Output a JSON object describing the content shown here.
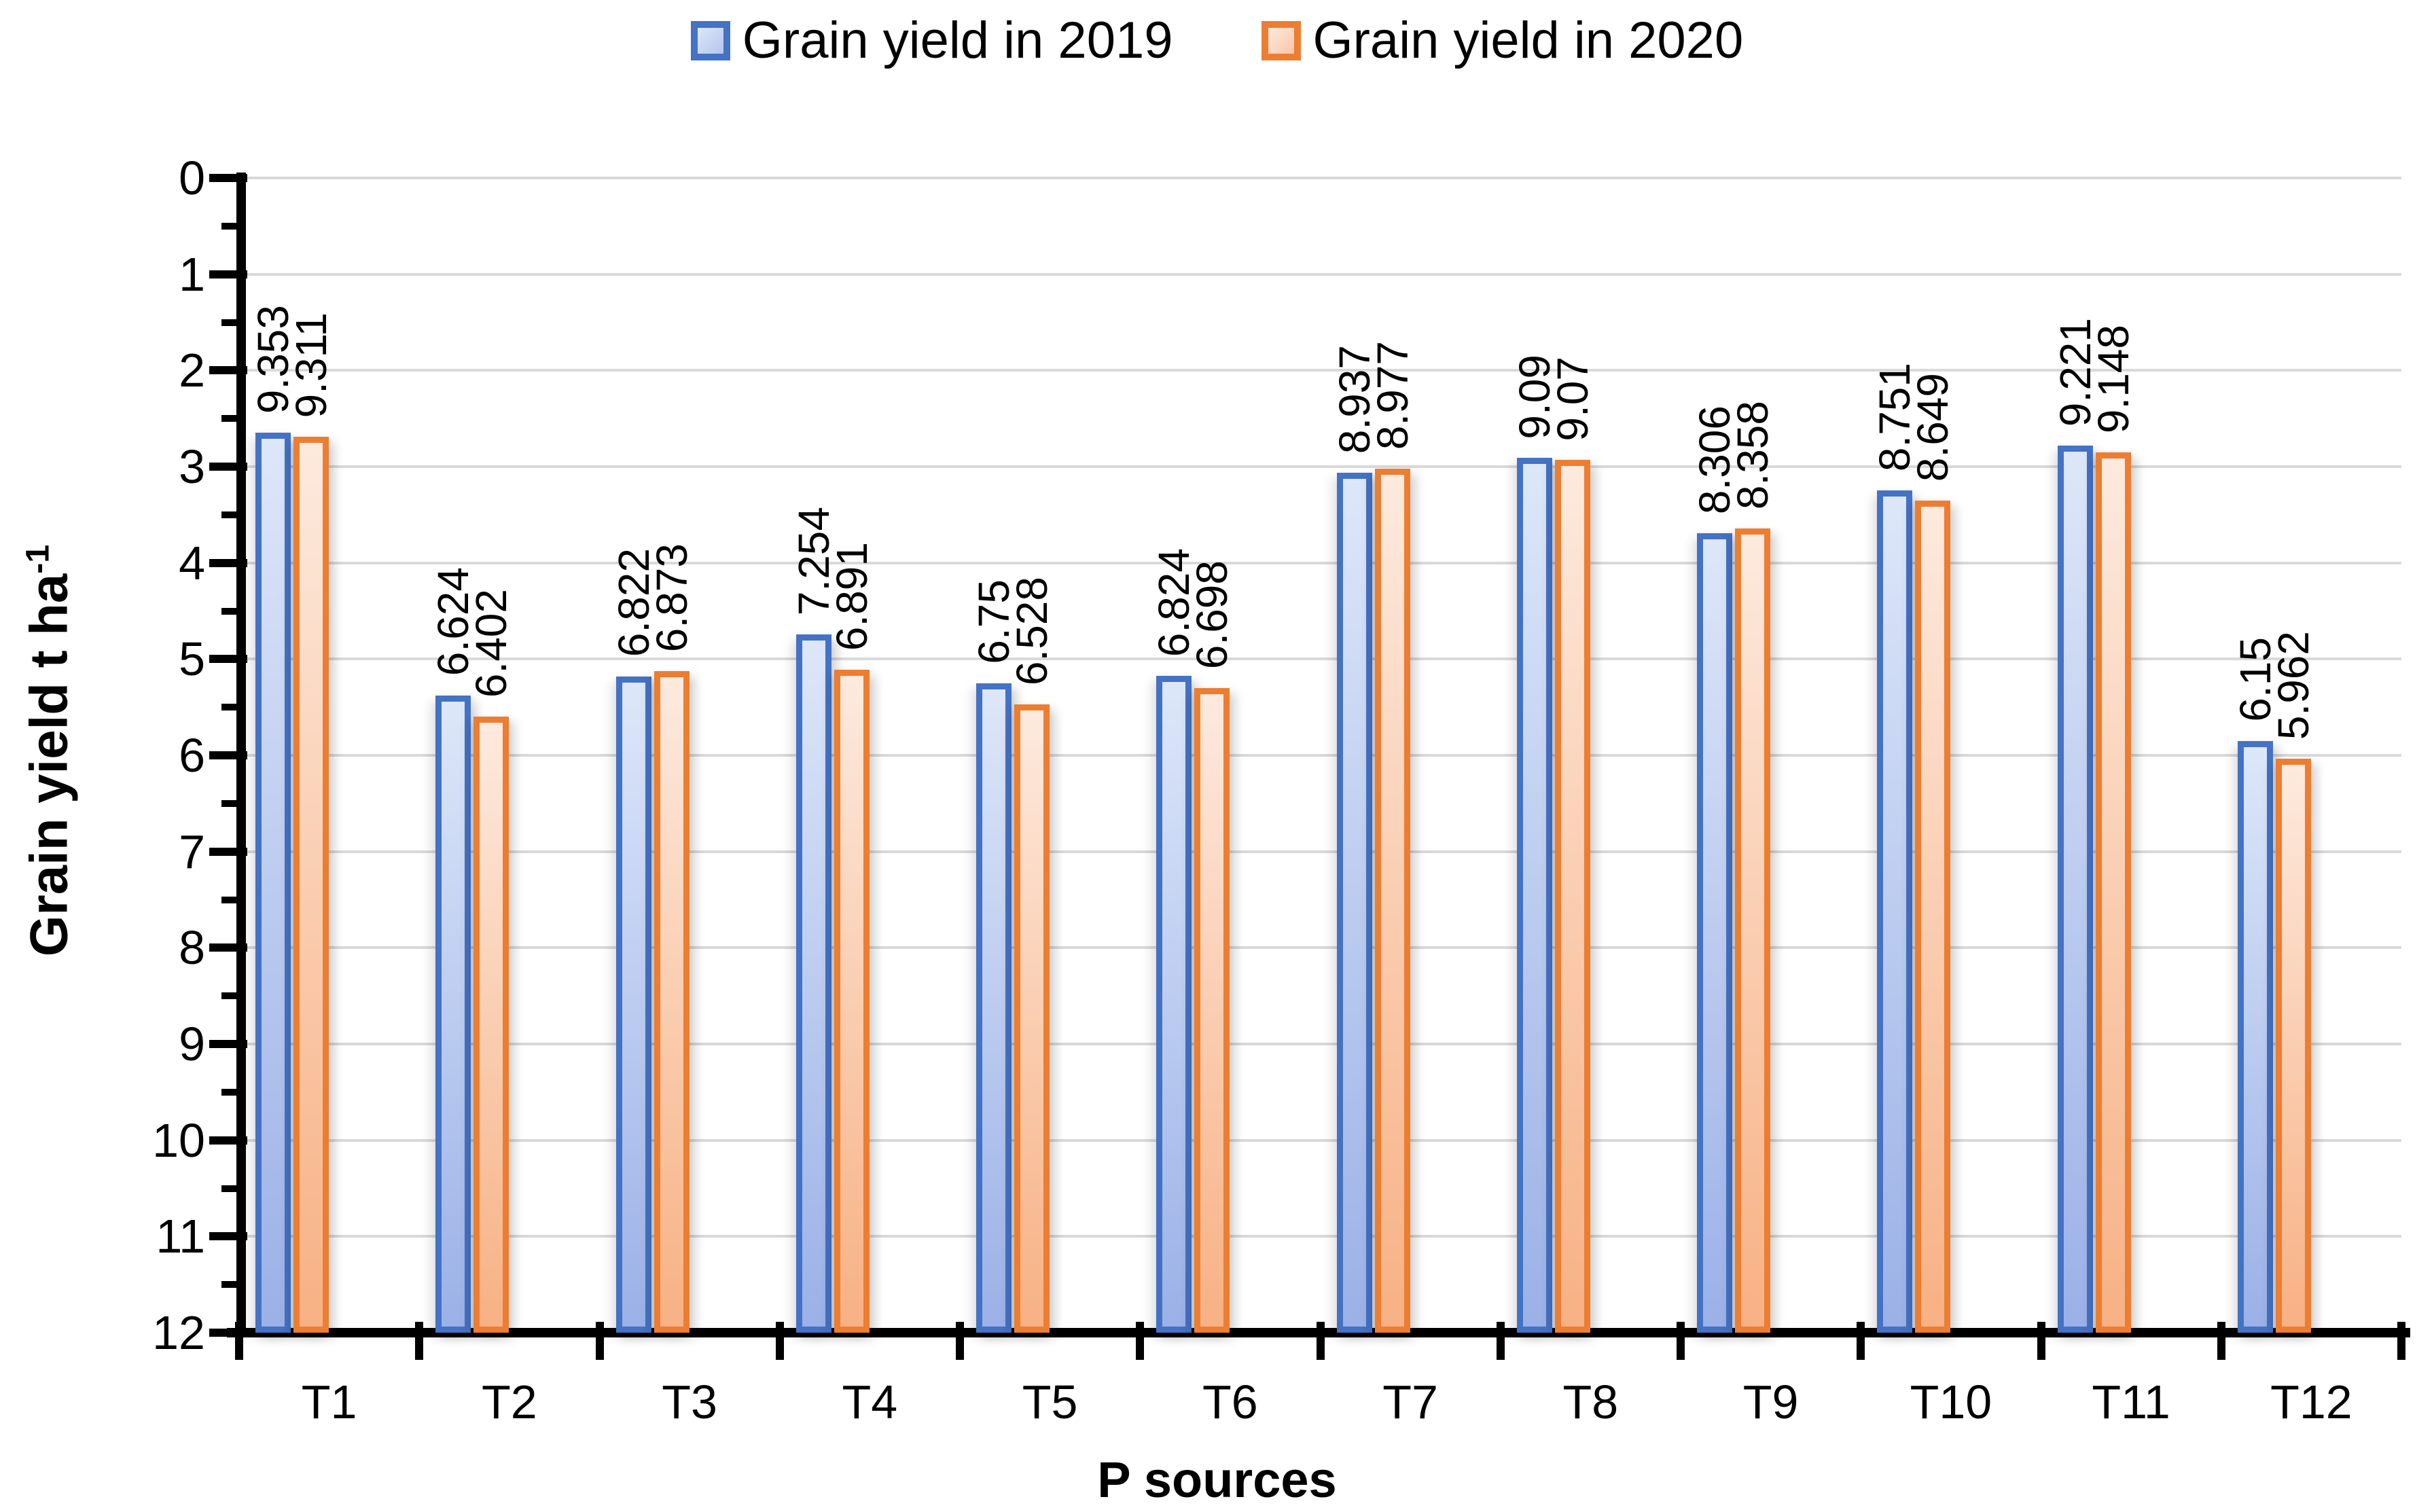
{
  "legend": {
    "items": [
      {
        "label": "Grain yield in 2019"
      },
      {
        "label": "Grain yield in 2020"
      }
    ]
  },
  "y_axis": {
    "title": "Grain yield t ha",
    "title_superscript": "-1",
    "tick_labels": [
      "0",
      "1",
      "2",
      "3",
      "4",
      "5",
      "6",
      "7",
      "8",
      "9",
      "10",
      "11",
      "12"
    ]
  },
  "x_axis": {
    "title": "P sources"
  },
  "chart_data": {
    "type": "bar",
    "title": "",
    "xlabel": "P sources",
    "ylabel": "Grain yield t ha-1",
    "ylim": [
      0,
      12
    ],
    "ytick_step": 1,
    "minor_tick_step": 0.5,
    "grid": "horizontal",
    "gridline_color": "#d9d9d9",
    "legend_position": "top",
    "categories": [
      "T1",
      "T2",
      "T3",
      "T4",
      "T5",
      "T6",
      "T7",
      "T8",
      "T9",
      "T10",
      "T11",
      "T12"
    ],
    "series": [
      {
        "name": "Grain yield in 2019",
        "border_color": "#4472C4",
        "fill_top": "#dde7f9",
        "fill_bottom": "#9bb1e7",
        "values": [
          9.353,
          6.624,
          6.822,
          7.254,
          6.75,
          6.824,
          8.937,
          9.09,
          8.306,
          8.751,
          9.221,
          6.15
        ],
        "labels": [
          "9.353",
          "6.624",
          "6.822",
          "7.254",
          "6.75",
          "6.824",
          "8.937",
          "9.09",
          "8.306",
          "8.751",
          "9.221",
          "6.15"
        ]
      },
      {
        "name": "Grain yield in 2020",
        "border_color": "#ED7D31",
        "fill_top": "#fdeade",
        "fill_bottom": "#f7b184",
        "values": [
          9.311,
          6.402,
          6.873,
          6.891,
          6.528,
          6.698,
          8.977,
          9.07,
          8.358,
          8.649,
          9.148,
          5.962
        ],
        "labels": [
          "9.311",
          "6.402",
          "6.873",
          "6.891",
          "6.528",
          "6.698",
          "8.977",
          "9.07",
          "8.358",
          "8.649",
          "9.148",
          "5.962"
        ]
      }
    ]
  }
}
